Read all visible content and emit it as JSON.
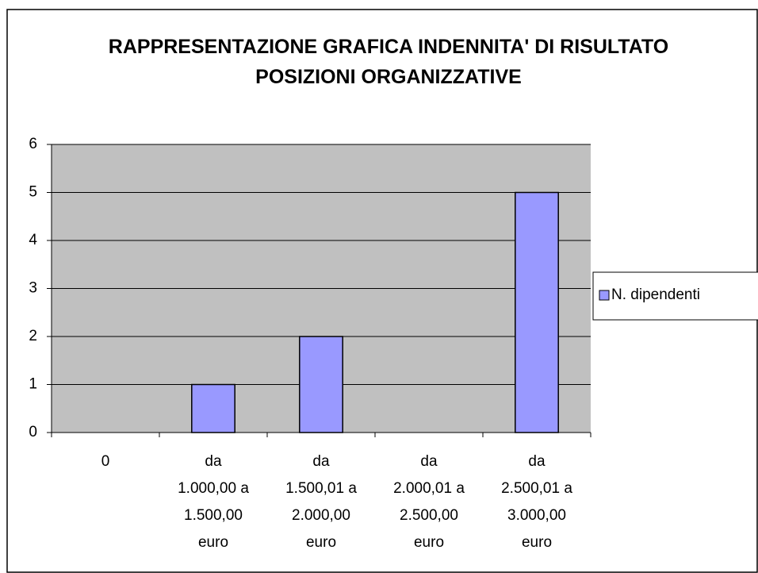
{
  "chart_data": {
    "type": "bar",
    "title": "RAPPRESENTAZIONE GRAFICA INDENNITA' DI RISULTATO POSIZIONI ORGANIZZATIVE",
    "categories": [
      [
        "0"
      ],
      [
        "da",
        "1.000,00 a",
        "1.500,00",
        "euro"
      ],
      [
        "da",
        "1.500,01 a",
        "2.000,00",
        "euro"
      ],
      [
        "da",
        "2.000,01 a",
        "2.500,00",
        "euro"
      ],
      [
        "da",
        "2.500,01 a",
        "3.000,00",
        "euro"
      ]
    ],
    "series": [
      {
        "name": "N. dipendenti",
        "color": "#9999ff",
        "values": [
          0,
          1,
          2,
          0,
          5
        ]
      }
    ],
    "ylim": [
      0,
      6
    ],
    "yticks": [
      0,
      1,
      2,
      3,
      4,
      5,
      6
    ],
    "grid": true,
    "legend": "right"
  }
}
